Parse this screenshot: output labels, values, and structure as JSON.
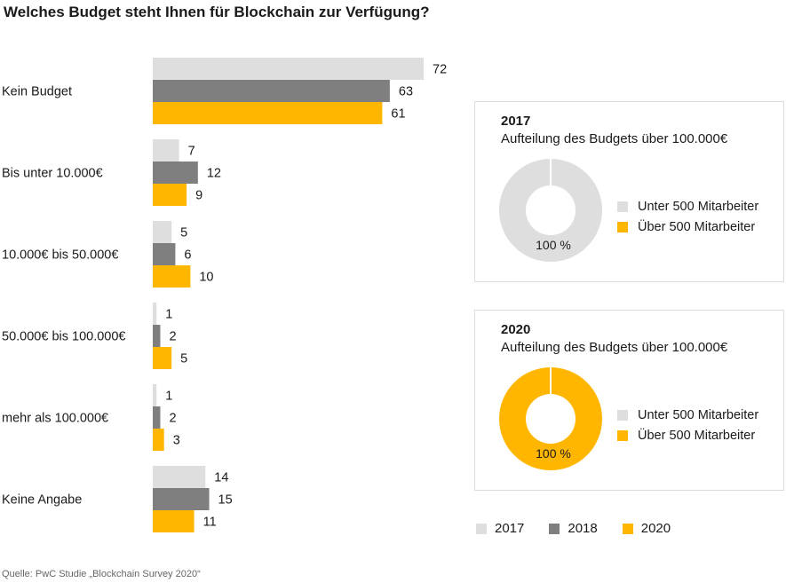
{
  "title": "Welches Budget steht Ihnen für Blockchain zur Verfügung?",
  "source": "Quelle: PwC Studie „Blockchain Survey 2020“",
  "colors": {
    "2017": "#dedede",
    "2018": "#7f7f7f",
    "2020": "#ffb600",
    "panel_border": "#dcdcdc"
  },
  "chart_data": [
    {
      "type": "bar",
      "orientation": "horizontal",
      "categories": [
        "Kein Budget",
        "Bis unter 10.000€",
        "10.000€ bis 50.000€",
        "50.000€ bis 100.000€",
        "mehr als 100.000€",
        "Keine Angabe"
      ],
      "series": [
        {
          "name": "2017",
          "color": "#dedede",
          "values": [
            72,
            7,
            5,
            1,
            1,
            14
          ]
        },
        {
          "name": "2018",
          "color": "#7f7f7f",
          "values": [
            63,
            12,
            6,
            2,
            2,
            15
          ]
        },
        {
          "name": "2020",
          "color": "#ffb600",
          "values": [
            61,
            9,
            10,
            5,
            3,
            11
          ]
        }
      ],
      "xlim": [
        0,
        72
      ],
      "grid": false,
      "legend": "bottom-right"
    },
    {
      "type": "pie",
      "variant": "donut",
      "year": "2017",
      "subtitle": "Aufteilung des Budgets über 100.000€",
      "slices": [
        {
          "label": "Unter 500 Mitarbeiter",
          "value": 100,
          "color": "#dedede"
        },
        {
          "label": "Über 500 Mitarbeiter",
          "value": 0,
          "color": "#ffb600"
        }
      ],
      "center_label": "100 %"
    },
    {
      "type": "pie",
      "variant": "donut",
      "year": "2020",
      "subtitle": "Aufteilung des Budgets über 100.000€",
      "slices": [
        {
          "label": "Unter 500 Mitarbeiter",
          "value": 0,
          "color": "#dedede"
        },
        {
          "label": "Über 500 Mitarbeiter",
          "value": 100,
          "color": "#ffb600"
        }
      ],
      "center_label": "100 %"
    }
  ]
}
